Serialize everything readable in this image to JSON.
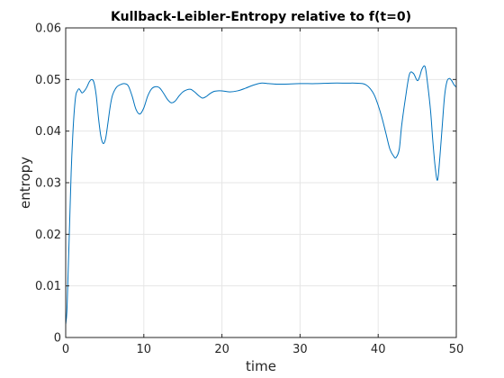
{
  "chart_data": {
    "type": "line",
    "title": "Kullback-Leibler-Entropy relative to f(t=0)",
    "xlabel": "time",
    "ylabel": "entropy",
    "xlim": [
      0,
      50
    ],
    "ylim": [
      0,
      0.06
    ],
    "xticks": [
      0,
      10,
      20,
      30,
      40,
      50
    ],
    "xtick_labels": [
      "0",
      "10",
      "20",
      "30",
      "40",
      "50"
    ],
    "yticks": [
      0,
      0.01,
      0.02,
      0.03,
      0.04,
      0.05,
      0.06
    ],
    "ytick_labels": [
      "0",
      "0.01",
      "0.02",
      "0.03",
      "0.04",
      "0.05",
      "0.06"
    ],
    "grid": true,
    "box": true,
    "line_color": "#0072bd",
    "series": [
      {
        "x": [
          0,
          0.15,
          0.3,
          0.5,
          0.7,
          0.9,
          1.1,
          1.3,
          1.5,
          1.7,
          1.9,
          2.1,
          2.4,
          2.7,
          3.0,
          3.3,
          3.6,
          3.9,
          4.2,
          4.5,
          4.8,
          5.1,
          5.4,
          5.7,
          6.0,
          6.5,
          7.0,
          7.5,
          8.0,
          8.5,
          9.0,
          9.5,
          10.0,
          10.5,
          11.0,
          11.5,
          12.0,
          12.5,
          13.0,
          13.5,
          14.0,
          14.5,
          15.0,
          15.5,
          16.0,
          16.5,
          17.0,
          17.5,
          18.0,
          18.5,
          19.0,
          19.5,
          20.0,
          21.0,
          22.0,
          23.0,
          24.0,
          25.0,
          26.0,
          27.0,
          28.0,
          30.0,
          32.0,
          34.0,
          36.0,
          37.0,
          38.0,
          38.5,
          39.0,
          39.5,
          40.0,
          40.5,
          41.0,
          41.5,
          42.0,
          42.3,
          42.7,
          43.0,
          43.5,
          44.0,
          44.5,
          45.0,
          45.3,
          45.6,
          46.0,
          46.3,
          46.7,
          47.0,
          47.3,
          47.6,
          47.9,
          48.2,
          48.5,
          48.8,
          49.1,
          49.4,
          49.7,
          50.0
        ],
        "y": [
          0.0025,
          0.005,
          0.012,
          0.022,
          0.032,
          0.039,
          0.044,
          0.047,
          0.0478,
          0.0482,
          0.0478,
          0.0474,
          0.0478,
          0.0485,
          0.0495,
          0.05,
          0.0495,
          0.047,
          0.0425,
          0.039,
          0.0376,
          0.0385,
          0.0415,
          0.0448,
          0.047,
          0.0485,
          0.049,
          0.0492,
          0.0488,
          0.0468,
          0.0442,
          0.0433,
          0.0445,
          0.0468,
          0.0482,
          0.0486,
          0.0484,
          0.0474,
          0.0462,
          0.0455,
          0.0458,
          0.0468,
          0.0476,
          0.048,
          0.0481,
          0.0476,
          0.0469,
          0.0464,
          0.0467,
          0.0473,
          0.0477,
          0.0478,
          0.0478,
          0.0476,
          0.0478,
          0.0483,
          0.0489,
          0.0493,
          0.0492,
          0.0491,
          0.0491,
          0.0492,
          0.0492,
          0.0493,
          0.0493,
          0.0493,
          0.0492,
          0.0489,
          0.0482,
          0.047,
          0.045,
          0.0425,
          0.0395,
          0.0365,
          0.0351,
          0.0349,
          0.0365,
          0.041,
          0.0465,
          0.051,
          0.0512,
          0.0498,
          0.0505,
          0.052,
          0.0525,
          0.0495,
          0.044,
          0.038,
          0.033,
          0.0305,
          0.035,
          0.041,
          0.0468,
          0.0496,
          0.0502,
          0.0498,
          0.049,
          0.0485
        ]
      }
    ]
  }
}
